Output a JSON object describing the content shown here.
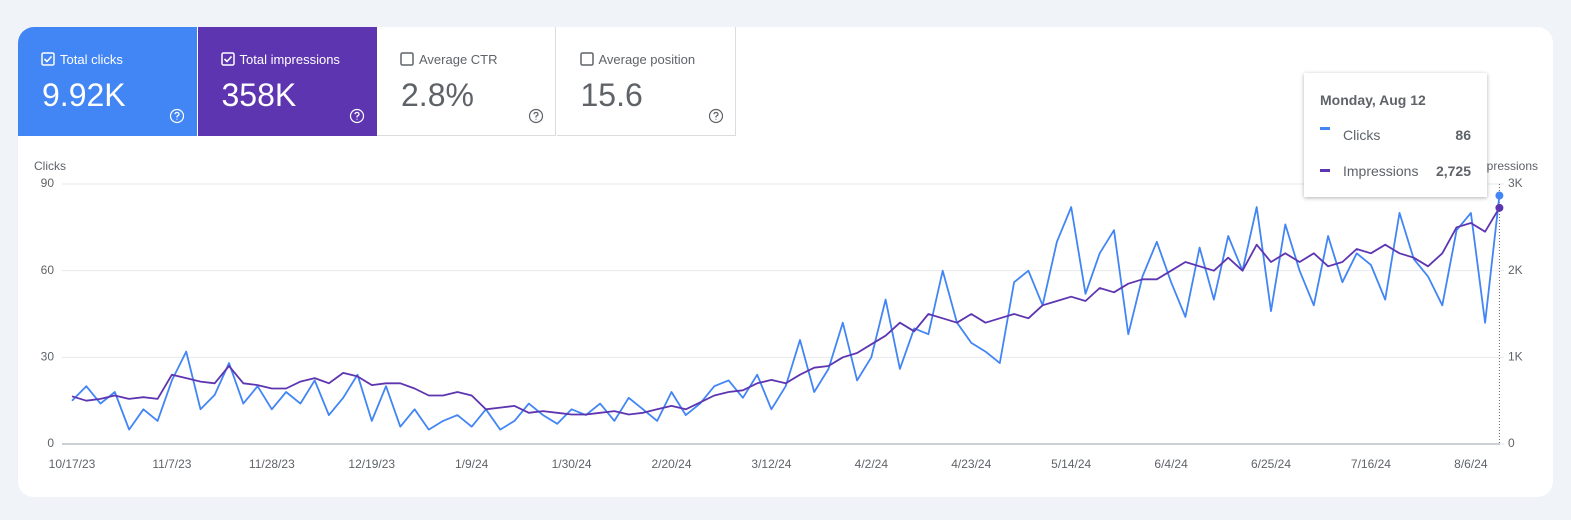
{
  "cards": [
    {
      "label": "Total clicks",
      "value": "9.92K",
      "checked": true,
      "color": "#4285f4"
    },
    {
      "label": "Total impressions",
      "value": "358K",
      "checked": true,
      "color": "#5e35b1"
    },
    {
      "label": "Average CTR",
      "value": "2.8%",
      "checked": false,
      "color": "#ffffff"
    },
    {
      "label": "Average position",
      "value": "15.6",
      "checked": false,
      "color": "#ffffff"
    }
  ],
  "chart_data": {
    "type": "line",
    "x": [
      "10/17/23",
      "10/20/23",
      "10/23/23",
      "10/26/23",
      "10/29/23",
      "11/1/23",
      "11/4/23",
      "11/7/23",
      "11/10/23",
      "11/13/23",
      "11/16/23",
      "11/19/23",
      "11/22/23",
      "11/25/23",
      "11/28/23",
      "12/1/23",
      "12/4/23",
      "12/7/23",
      "12/10/23",
      "12/13/23",
      "12/16/23",
      "12/19/23",
      "12/22/23",
      "12/25/23",
      "12/28/23",
      "12/31/23",
      "1/3/24",
      "1/6/24",
      "1/9/24",
      "1/12/24",
      "1/15/24",
      "1/18/24",
      "1/21/24",
      "1/24/24",
      "1/27/24",
      "1/30/24",
      "2/2/24",
      "2/5/24",
      "2/8/24",
      "2/11/24",
      "2/14/24",
      "2/17/24",
      "2/20/24",
      "2/23/24",
      "2/26/24",
      "2/29/24",
      "3/3/24",
      "3/6/24",
      "3/9/24",
      "3/12/24",
      "3/15/24",
      "3/18/24",
      "3/21/24",
      "3/24/24",
      "3/27/24",
      "3/30/24",
      "4/2/24",
      "4/5/24",
      "4/8/24",
      "4/11/24",
      "4/14/24",
      "4/17/24",
      "4/20/24",
      "4/23/24",
      "4/26/24",
      "4/29/24",
      "5/2/24",
      "5/5/24",
      "5/8/24",
      "5/11/24",
      "5/14/24",
      "5/17/24",
      "5/20/24",
      "5/23/24",
      "5/26/24",
      "5/29/24",
      "6/1/24",
      "6/4/24",
      "6/7/24",
      "6/10/24",
      "6/13/24",
      "6/16/24",
      "6/19/24",
      "6/22/24",
      "6/25/24",
      "6/28/24",
      "7/1/24",
      "7/4/24",
      "7/7/24",
      "7/10/24",
      "7/13/24",
      "7/16/24",
      "7/19/24",
      "7/22/24",
      "7/25/24",
      "7/28/24",
      "7/31/24",
      "8/3/24",
      "8/6/24",
      "8/9/24",
      "8/12/24"
    ],
    "series": [
      {
        "name": "Clicks",
        "color": "#4285f4",
        "values": [
          15,
          20,
          14,
          18,
          5,
          12,
          8,
          22,
          32,
          12,
          17,
          28,
          14,
          20,
          12,
          18,
          14,
          22,
          10,
          16,
          24,
          8,
          20,
          6,
          12,
          5,
          8,
          10,
          6,
          12,
          5,
          8,
          14,
          10,
          7,
          12,
          10,
          14,
          8,
          16,
          12,
          8,
          18,
          10,
          14,
          20,
          22,
          16,
          24,
          12,
          20,
          36,
          18,
          26,
          42,
          22,
          30,
          50,
          26,
          40,
          38,
          60,
          42,
          35,
          32,
          28,
          56,
          60,
          48,
          70,
          82,
          52,
          66,
          74,
          38,
          58,
          70,
          56,
          44,
          68,
          50,
          72,
          60,
          82,
          46,
          76,
          60,
          48,
          72,
          56,
          66,
          62,
          50,
          80,
          64,
          58,
          48,
          74,
          80,
          42,
          86
        ]
      },
      {
        "name": "Impressions",
        "color": "#5e35b1",
        "axis": "y2",
        "values": [
          550,
          500,
          520,
          560,
          520,
          540,
          520,
          800,
          760,
          720,
          700,
          900,
          700,
          680,
          640,
          640,
          720,
          760,
          700,
          820,
          780,
          680,
          700,
          700,
          640,
          560,
          560,
          600,
          560,
          400,
          420,
          440,
          360,
          380,
          360,
          340,
          340,
          360,
          380,
          340,
          360,
          400,
          440,
          400,
          480,
          560,
          600,
          620,
          700,
          740,
          700,
          800,
          880,
          900,
          1000,
          1050,
          1150,
          1250,
          1400,
          1300,
          1500,
          1450,
          1400,
          1500,
          1400,
          1450,
          1500,
          1450,
          1600,
          1650,
          1700,
          1650,
          1800,
          1750,
          1850,
          1900,
          1900,
          2000,
          2100,
          2050,
          2000,
          2150,
          2000,
          2300,
          2100,
          2200,
          2100,
          2200,
          2050,
          2100,
          2250,
          2200,
          2300,
          2200,
          2150,
          2050,
          2200,
          2500,
          2550,
          2450,
          2725
        ]
      }
    ],
    "ylim": [
      0,
      90
    ],
    "yticks": [
      0,
      30,
      60,
      90
    ],
    "y2lim": [
      0,
      3000
    ],
    "y2ticks": [
      0,
      {
        "value": 1000,
        "label": "1K"
      },
      {
        "value": 2000,
        "label": "2K"
      },
      {
        "value": 3000,
        "label": "3K"
      }
    ],
    "grid": true,
    "tooltip": {
      "title": "Monday, Aug 12",
      "impressions_label": "2,725"
    }
  }
}
